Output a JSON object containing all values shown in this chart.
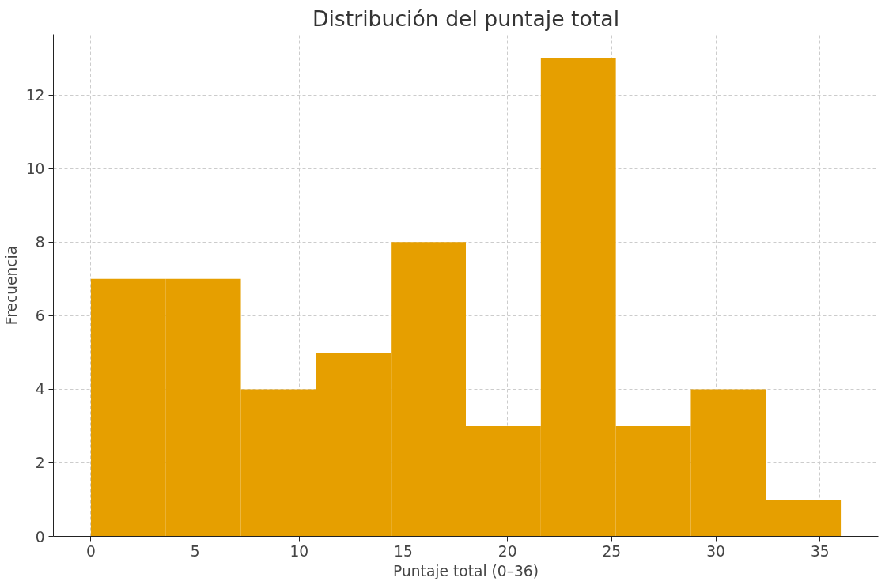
{
  "chart_data": {
    "type": "histogram",
    "title": "Distribución del puntaje total",
    "xlabel": "Puntaje total (0–36)",
    "ylabel": "Frecuencia",
    "bins": [
      0,
      3.6,
      7.2,
      10.8,
      14.4,
      18,
      21.6,
      25.2,
      28.8,
      32.4,
      36
    ],
    "values": [
      7,
      7,
      4,
      5,
      8,
      3,
      13,
      3,
      4,
      1
    ],
    "color": "#e69f00",
    "xlim": [
      -1.8,
      37.8
    ],
    "ylim": [
      0,
      13.65
    ],
    "xticks": [
      0,
      5,
      10,
      15,
      20,
      25,
      30,
      35
    ],
    "yticks": [
      0,
      2,
      4,
      6,
      8,
      10,
      12
    ],
    "grid": true
  }
}
